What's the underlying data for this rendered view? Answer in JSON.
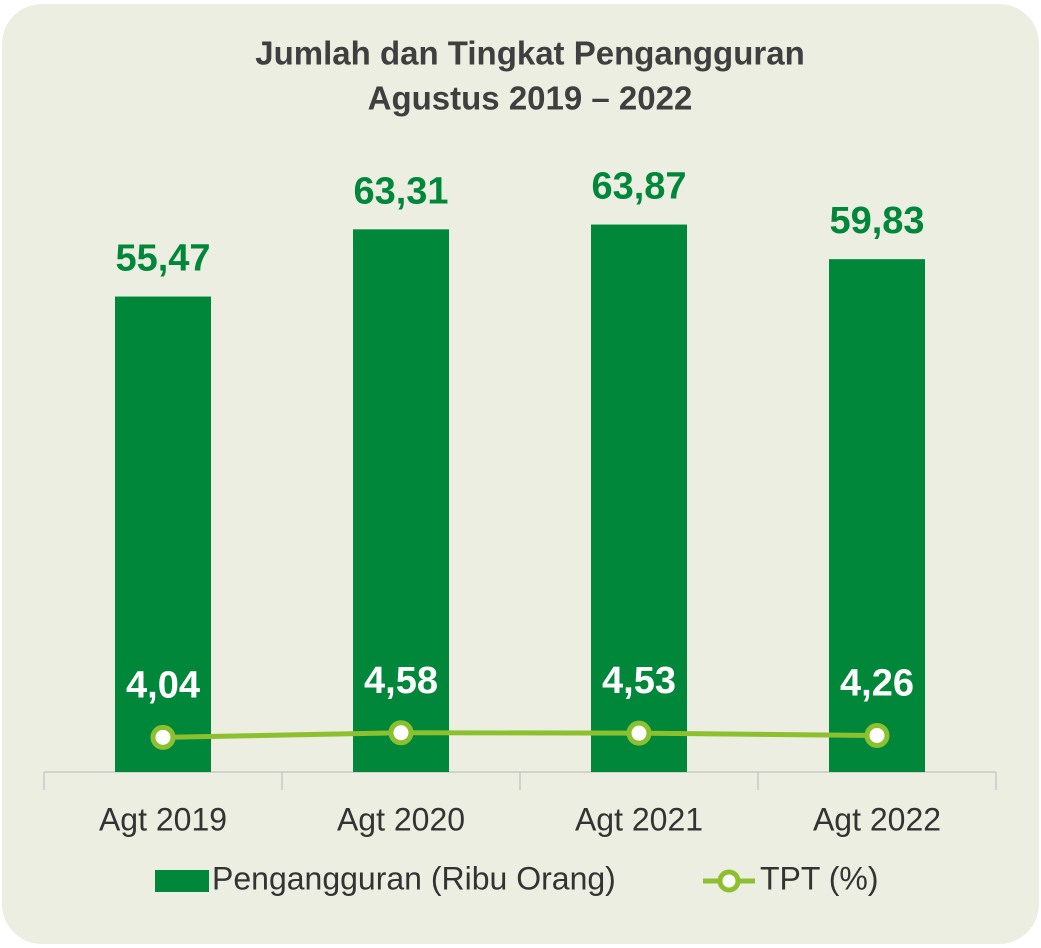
{
  "chart_data": {
    "type": "bar",
    "title": [
      "Jumlah dan Tingkat Pengangguran",
      "Agustus 2019 – 2022"
    ],
    "categories": [
      "Agt 2019",
      "Agt 2020",
      "Agt 2021",
      "Agt 2022"
    ],
    "ylim": [
      0,
      70
    ],
    "series": [
      {
        "name": "Pengangguran (Ribu Orang)",
        "type": "bar",
        "color": "#00873a",
        "values": [
          55.47,
          63.31,
          63.87,
          59.83
        ],
        "value_labels": [
          "55,47",
          "63,31",
          "63,87",
          "59,83"
        ]
      },
      {
        "name": "TPT (%)",
        "type": "line",
        "color": "#8cc02f",
        "values": [
          4.04,
          4.58,
          4.53,
          4.26
        ],
        "value_labels": [
          "4,04",
          "4,58",
          "4,53",
          "4,26"
        ]
      }
    ],
    "legend": "bottom"
  }
}
